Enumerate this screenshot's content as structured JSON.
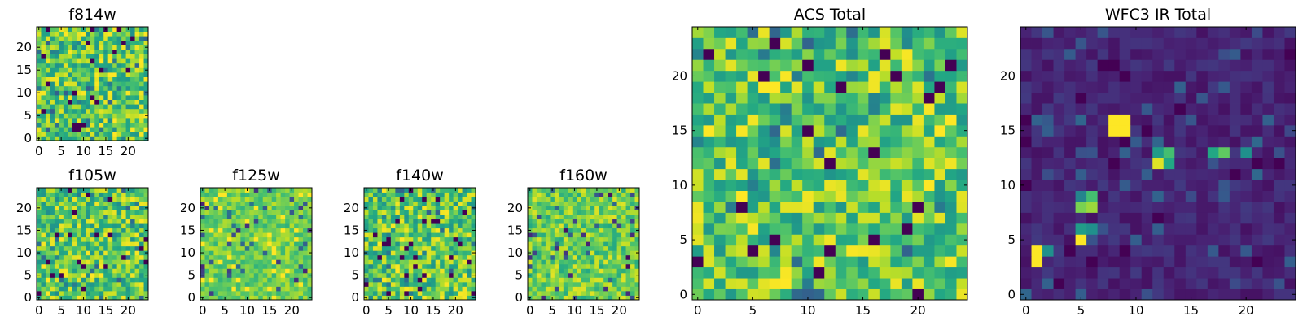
{
  "chart_data": [
    {
      "type": "heatmap",
      "title": "f814w",
      "xticks": [
        "0",
        "5",
        "10",
        "15",
        "20"
      ],
      "yticks": [
        "0",
        "5",
        "10",
        "15",
        "20"
      ],
      "xlim": [
        -0.5,
        24.5
      ],
      "ylim": [
        -0.5,
        24.5
      ],
      "colormap": "viridis",
      "grid": 25,
      "values": [],
      "pattern": "noise"
    },
    {
      "type": "heatmap",
      "title": "f105w",
      "xticks": [
        "0",
        "5",
        "10",
        "15",
        "20"
      ],
      "yticks": [
        "0",
        "5",
        "10",
        "15",
        "20"
      ],
      "xlim": [
        -0.5,
        24.5
      ],
      "ylim": [
        -0.5,
        24.5
      ],
      "colormap": "viridis",
      "grid": 25,
      "values": [],
      "pattern": "noise"
    },
    {
      "type": "heatmap",
      "title": "f125w",
      "xticks": [
        "0",
        "5",
        "10",
        "15",
        "20"
      ],
      "yticks": [
        "0",
        "5",
        "10",
        "15",
        "20"
      ],
      "xlim": [
        -0.5,
        24.5
      ],
      "ylim": [
        -0.5,
        24.5
      ],
      "colormap": "viridis",
      "grid": 25,
      "values": [],
      "pattern": "smooth"
    },
    {
      "type": "heatmap",
      "title": "f140w",
      "xticks": [
        "0",
        "5",
        "10",
        "15",
        "20"
      ],
      "yticks": [
        "0",
        "5",
        "10",
        "15",
        "20"
      ],
      "xlim": [
        -0.5,
        24.5
      ],
      "ylim": [
        -0.5,
        24.5
      ],
      "colormap": "viridis",
      "grid": 25,
      "values": [],
      "pattern": "noise"
    },
    {
      "type": "heatmap",
      "title": "f160w",
      "xticks": [
        "0",
        "5",
        "10",
        "15",
        "20"
      ],
      "yticks": [
        "0",
        "5",
        "10",
        "15",
        "20"
      ],
      "xlim": [
        -0.5,
        24.5
      ],
      "ylim": [
        -0.5,
        24.5
      ],
      "colormap": "viridis",
      "grid": 25,
      "values": [],
      "pattern": "blocky"
    },
    {
      "type": "heatmap",
      "title": "ACS Total",
      "xticks": [
        "0",
        "5",
        "10",
        "15",
        "20"
      ],
      "yticks": [
        "0",
        "5",
        "10",
        "15",
        "20"
      ],
      "xlim": [
        -0.5,
        24.5
      ],
      "ylim": [
        -0.5,
        24.5
      ],
      "colormap": "viridis",
      "grid": 25,
      "values": [],
      "pattern": "noise"
    },
    {
      "type": "heatmap",
      "title": "WFC3 IR Total",
      "xticks": [
        "0",
        "5",
        "10",
        "15",
        "20"
      ],
      "yticks": [
        "0",
        "5",
        "10",
        "15",
        "20"
      ],
      "xlim": [
        -0.5,
        24.5
      ],
      "ylim": [
        -0.5,
        24.5
      ],
      "colormap": "viridis",
      "grid": 25,
      "values": [],
      "pattern": "dark",
      "bright_spots": [
        {
          "x": 8,
          "y": 15,
          "value": 1.0
        },
        {
          "x": 9,
          "y": 15,
          "value": 1.0
        },
        {
          "x": 8,
          "y": 16,
          "value": 1.0
        },
        {
          "x": 9,
          "y": 16,
          "value": 1.0
        },
        {
          "x": 12,
          "y": 12,
          "value": 0.95
        },
        {
          "x": 13,
          "y": 12,
          "value": 0.6
        },
        {
          "x": 12,
          "y": 13,
          "value": 0.55
        },
        {
          "x": 13,
          "y": 13,
          "value": 0.7
        },
        {
          "x": 17,
          "y": 13,
          "value": 0.6
        },
        {
          "x": 18,
          "y": 13,
          "value": 0.75
        },
        {
          "x": 20,
          "y": 13,
          "value": 0.5
        },
        {
          "x": 5,
          "y": 8,
          "value": 0.8
        },
        {
          "x": 6,
          "y": 8,
          "value": 0.85
        },
        {
          "x": 6,
          "y": 9,
          "value": 0.7
        },
        {
          "x": 5,
          "y": 9,
          "value": 0.45
        },
        {
          "x": 5,
          "y": 5,
          "value": 1.0
        },
        {
          "x": 5,
          "y": 6,
          "value": 0.55
        },
        {
          "x": 6,
          "y": 6,
          "value": 0.5
        },
        {
          "x": 1,
          "y": 3,
          "value": 1.0
        },
        {
          "x": 1,
          "y": 4,
          "value": 1.0
        },
        {
          "x": 2,
          "y": 4,
          "value": 0.5
        }
      ]
    }
  ]
}
